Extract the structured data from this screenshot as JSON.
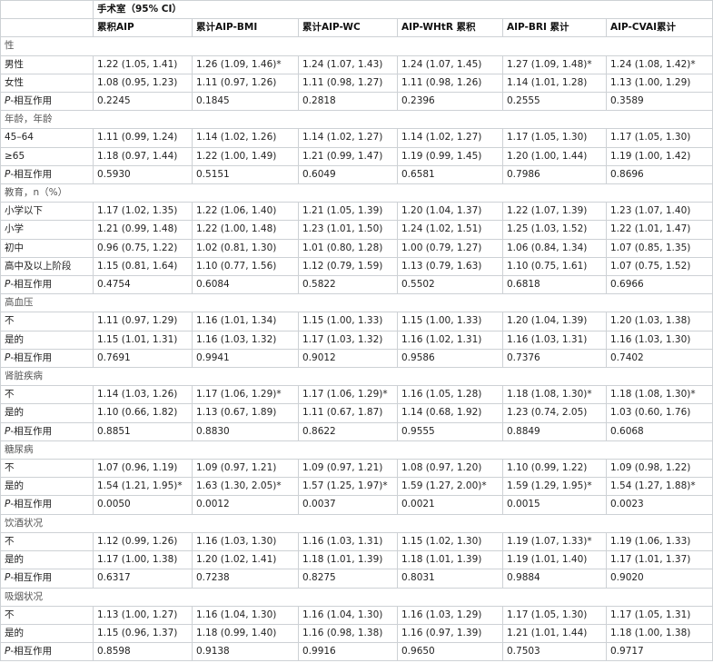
{
  "header": {
    "group_title": "手术室（95% CI）",
    "columns": [
      "累积AIP",
      "累计AIP-BMI",
      "累计AIP-WC",
      "AIP-WHtR 累积",
      "AIP-BRI 累计",
      "AIP-CVAI累计"
    ]
  },
  "p_label_prefix": "P",
  "p_label_suffix": "-相互作用",
  "sections": [
    {
      "title": "性",
      "rows": [
        {
          "label": "男性",
          "values": [
            "1.22 (1.05, 1.41)",
            "1.26 (1.09, 1.46)*",
            "1.24 (1.07, 1.43)",
            "1.24 (1.07, 1.45)",
            "1.27 (1.09, 1.48)*",
            "1.24 (1.08, 1.42)*"
          ]
        },
        {
          "label": "女性",
          "values": [
            "1.08 (0.95, 1.23)",
            "1.11 (0.97, 1.26)",
            "1.11 (0.98, 1.27)",
            "1.11 (0.98, 1.26)",
            "1.14 (1.01, 1.28)",
            "1.13 (1.00, 1.29)"
          ]
        }
      ],
      "p_values": [
        "0.2245",
        "0.1845",
        "0.2818",
        "0.2396",
        "0.2555",
        "0.3589"
      ]
    },
    {
      "title": "年龄，年龄",
      "rows": [
        {
          "label": "45–64",
          "values": [
            "1.11 (0.99, 1.24)",
            "1.14 (1.02, 1.26)",
            "1.14 (1.02, 1.27)",
            "1.14 (1.02, 1.27)",
            "1.17 (1.05, 1.30)",
            "1.17 (1.05, 1.30)"
          ]
        },
        {
          "label": "≥65",
          "values": [
            "1.18 (0.97, 1.44)",
            "1.22 (1.00, 1.49)",
            "1.21 (0.99, 1.47)",
            "1.19 (0.99, 1.45)",
            "1.20 (1.00, 1.44)",
            "1.19 (1.00, 1.42)"
          ]
        }
      ],
      "p_values": [
        "0.5930",
        "0.5151",
        "0.6049",
        "0.6581",
        "0.7986",
        "0.8696"
      ]
    },
    {
      "title": "教育，n（%）",
      "rows": [
        {
          "label": "小学以下",
          "values": [
            "1.17 (1.02, 1.35)",
            "1.22 (1.06, 1.40)",
            "1.21 (1.05, 1.39)",
            "1.20 (1.04, 1.37)",
            "1.22 (1.07, 1.39)",
            "1.23 (1.07, 1.40)"
          ]
        },
        {
          "label": "小学",
          "values": [
            "1.21 (0.99, 1.48)",
            "1.22 (1.00, 1.48)",
            "1.23 (1.01, 1.50)",
            "1.24 (1.02, 1.51)",
            "1.25 (1.03, 1.52)",
            "1.22 (1.01, 1.47)"
          ]
        },
        {
          "label": "初中",
          "values": [
            "0.96 (0.75, 1.22)",
            "1.02 (0.81, 1.30)",
            "1.01 (0.80, 1.28)",
            "1.00 (0.79, 1.27)",
            "1.06 (0.84, 1.34)",
            "1.07 (0.85, 1.35)"
          ]
        },
        {
          "label": "高中及以上阶段",
          "values": [
            "1.15 (0.81, 1.64)",
            "1.10 (0.77, 1.56)",
            "1.12 (0.79, 1.59)",
            "1.13 (0.79, 1.63)",
            "1.10 (0.75, 1.61)",
            "1.07 (0.75, 1.52)"
          ]
        }
      ],
      "p_values": [
        "0.4754",
        "0.6084",
        "0.5822",
        "0.5502",
        "0.6818",
        "0.6966"
      ]
    },
    {
      "title": "高血压",
      "rows": [
        {
          "label": "不",
          "values": [
            "1.11 (0.97, 1.29)",
            "1.16 (1.01, 1.34)",
            "1.15 (1.00, 1.33)",
            "1.15 (1.00, 1.33)",
            "1.20 (1.04, 1.39)",
            "1.20 (1.03, 1.38)"
          ]
        },
        {
          "label": "是的",
          "values": [
            "1.15 (1.01, 1.31)",
            "1.16 (1.03, 1.32)",
            "1.17 (1.03, 1.32)",
            "1.16 (1.02, 1.31)",
            "1.16 (1.03, 1.31)",
            "1.16 (1.03, 1.30)"
          ]
        }
      ],
      "p_values": [
        "0.7691",
        "0.9941",
        "0.9012",
        "0.9586",
        "0.7376",
        "0.7402"
      ]
    },
    {
      "title": "肾脏疾病",
      "rows": [
        {
          "label": "不",
          "values": [
            "1.14 (1.03, 1.26)",
            "1.17 (1.06, 1.29)*",
            "1.17 (1.06, 1.29)*",
            "1.16 (1.05, 1.28)",
            "1.18 (1.08, 1.30)*",
            "1.18 (1.08, 1.30)*"
          ]
        },
        {
          "label": "是的",
          "values": [
            "1.10 (0.66, 1.82)",
            "1.13 (0.67, 1.89)",
            "1.11 (0.67, 1.87)",
            "1.14 (0.68, 1.92)",
            "1.23 (0.74, 2.05)",
            "1.03 (0.60, 1.76)"
          ]
        }
      ],
      "p_values": [
        "0.8851",
        "0.8830",
        "0.8622",
        "0.9555",
        "0.8849",
        "0.6068"
      ]
    },
    {
      "title": "糖尿病",
      "rows": [
        {
          "label": "不",
          "values": [
            "1.07 (0.96, 1.19)",
            "1.09 (0.97, 1.21)",
            "1.09 (0.97, 1.21)",
            "1.08 (0.97, 1.20)",
            "1.10 (0.99, 1.22)",
            "1.09 (0.98, 1.22)"
          ]
        },
        {
          "label": "是的",
          "values": [
            "1.54 (1.21, 1.95)*",
            "1.63 (1.30, 2.05)*",
            "1.57 (1.25, 1.97)*",
            "1.59 (1.27, 2.00)*",
            "1.59 (1.29, 1.95)*",
            "1.54 (1.27, 1.88)*"
          ]
        }
      ],
      "p_values": [
        "0.0050",
        "0.0012",
        "0.0037",
        "0.0021",
        "0.0015",
        "0.0023"
      ]
    },
    {
      "title": "饮酒状况",
      "rows": [
        {
          "label": "不",
          "values": [
            "1.12 (0.99, 1.26)",
            "1.16 (1.03, 1.30)",
            "1.16 (1.03, 1.31)",
            "1.15 (1.02, 1.30)",
            "1.19 (1.07, 1.33)*",
            "1.19 (1.06, 1.33)"
          ]
        },
        {
          "label": "是的",
          "values": [
            "1.17 (1.00, 1.38)",
            "1.20 (1.02, 1.41)",
            "1.18 (1.01, 1.39)",
            "1.18 (1.01, 1.39)",
            "1.19 (1.01, 1.40)",
            "1.17 (1.01, 1.37)"
          ]
        }
      ],
      "p_values": [
        "0.6317",
        "0.7238",
        "0.8275",
        "0.8031",
        "0.9884",
        "0.9020"
      ]
    },
    {
      "title": "吸烟状况",
      "rows": [
        {
          "label": "不",
          "values": [
            "1.13 (1.00, 1.27)",
            "1.16 (1.04, 1.30)",
            "1.16 (1.04, 1.30)",
            "1.16 (1.03, 1.29)",
            "1.17 (1.05, 1.30)",
            "1.17 (1.05, 1.31)"
          ]
        },
        {
          "label": "是的",
          "values": [
            "1.15 (0.96, 1.37)",
            "1.18 (0.99, 1.40)",
            "1.16 (0.98, 1.38)",
            "1.16 (0.97, 1.39)",
            "1.21 (1.01, 1.44)",
            "1.18 (1.00, 1.38)"
          ]
        }
      ],
      "p_values": [
        "0.8598",
        "0.9138",
        "0.9916",
        "0.9650",
        "0.7503",
        "0.9717"
      ]
    }
  ]
}
